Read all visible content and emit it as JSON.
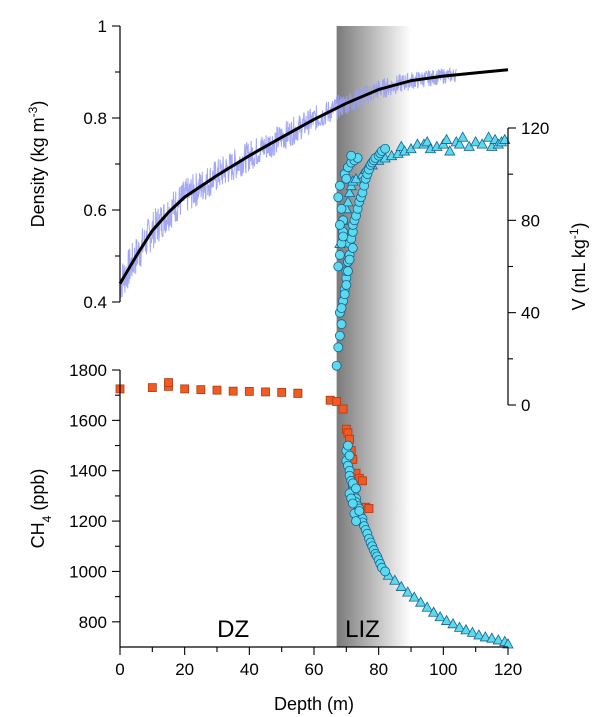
{
  "chart_data": {
    "type": "scatter",
    "x_axis": {
      "label": "Depth (m)",
      "range": [
        0,
        120
      ],
      "ticks": [
        0,
        20,
        40,
        60,
        80,
        100,
        120
      ]
    },
    "density_axis": {
      "label": "Density (kg m-3)",
      "label_main": "Density (kg m",
      "label_sup": "-3",
      "label_end": ")",
      "range": [
        0.4,
        1.0
      ],
      "ticks": [
        0.4,
        0.6,
        0.8,
        1.0
      ],
      "tick_labels": [
        "0.4",
        "0.6",
        "0.8",
        "1"
      ]
    },
    "v_axis": {
      "label": "V (mL kg-1)",
      "label_main": "V (mL kg",
      "label_sup": "-1",
      "label_end": ")",
      "range": [
        0,
        120
      ],
      "ticks": [
        0,
        40,
        80,
        120
      ]
    },
    "ch4_axis": {
      "label": "CH4 (ppb)",
      "label_main": "CH",
      "label_sub": "4",
      "label_end": " (ppb)",
      "range": [
        700,
        1800
      ],
      "ticks": [
        800,
        1000,
        1200,
        1400,
        1600,
        1800
      ]
    },
    "zones": [
      {
        "label": "DZ",
        "label_x": 35
      },
      {
        "label": "LIZ",
        "label_x": 75,
        "shade_from": 67,
        "shade_to": 90
      }
    ],
    "density_fit": {
      "x": [
        0,
        5,
        10,
        15,
        20,
        30,
        40,
        50,
        60,
        70,
        80,
        90,
        100,
        110,
        120
      ],
      "y": [
        0.44,
        0.5,
        0.555,
        0.595,
        0.628,
        0.675,
        0.718,
        0.758,
        0.797,
        0.832,
        0.862,
        0.881,
        0.891,
        0.898,
        0.905
      ]
    },
    "density_raw": {
      "x_range": [
        0,
        104
      ],
      "note_color": "#9a9ff2"
    },
    "ch4_firn": {
      "x": [
        0,
        10,
        15,
        15,
        20,
        25,
        30,
        35,
        40,
        45,
        50,
        55,
        55,
        65,
        67,
        69,
        70,
        70.5,
        71,
        71.5,
        72,
        73,
        74,
        75,
        76,
        77
      ],
      "y": [
        1725,
        1730,
        1735,
        1750,
        1725,
        1722,
        1720,
        1716,
        1715,
        1713,
        1711,
        1708,
        1707,
        1680,
        1675,
        1645,
        1565,
        1550,
        1525,
        1480,
        1445,
        1390,
        1370,
        1360,
        1255,
        1250
      ]
    },
    "v_circles": {
      "x": [
        67,
        67.5,
        68,
        68.5,
        68,
        69,
        69.5,
        70,
        70,
        70.5,
        71,
        71,
        71.5,
        72,
        72,
        72.5,
        73,
        73.5,
        74,
        74.5,
        75,
        75.5,
        76,
        76.5,
        77,
        77.5,
        78,
        78.5,
        79,
        80,
        80.5,
        81,
        82,
        67.5,
        68,
        68.5,
        69,
        69,
        68.5,
        67.5,
        68,
        69.5,
        70.5,
        71.5,
        72.5,
        73.5,
        68.5,
        69.5,
        70,
        70.5,
        71,
        72,
        69,
        68,
        70,
        71.5
      ],
      "y": [
        17,
        25,
        30,
        35,
        40,
        45,
        50,
        55,
        58,
        62,
        65,
        70,
        72,
        75,
        78,
        80,
        82,
        85,
        88,
        90,
        92,
        95,
        98,
        100,
        102,
        104,
        105,
        106,
        107,
        108,
        109,
        110,
        111,
        60,
        65,
        70,
        75,
        80,
        85,
        90,
        95,
        100,
        103,
        105,
        106,
        107,
        42,
        48,
        52,
        58,
        63,
        68,
        73,
        78,
        98,
        108
      ]
    },
    "v_triangles": {
      "x": [
        68,
        69,
        70,
        70.5,
        71,
        71.5,
        72,
        73,
        75,
        76,
        78,
        80,
        82,
        84,
        86,
        87,
        88,
        90,
        92,
        94,
        95,
        96,
        98,
        100,
        101,
        102,
        104,
        105,
        106,
        108,
        110,
        112,
        114,
        115,
        116,
        117,
        118,
        119
      ],
      "y": [
        70,
        80,
        85,
        88,
        92,
        95,
        97,
        98,
        100,
        102,
        104,
        106,
        107,
        108,
        109,
        112,
        110,
        111,
        113,
        113,
        114,
        111,
        112,
        113,
        115,
        110,
        114,
        113,
        116,
        112,
        114,
        113,
        116,
        112,
        115,
        113,
        114,
        115
      ]
    },
    "ch4_circles": {
      "x": [
        70,
        70,
        70.5,
        71,
        71,
        71.5,
        72,
        72,
        72.5,
        73,
        73,
        73.5,
        74,
        74,
        74.5,
        75,
        75,
        75.5,
        76,
        76.5,
        77,
        77.5,
        78,
        78.5,
        79,
        79.5,
        80,
        80.5,
        81,
        82,
        71,
        71.5,
        72,
        72.5,
        73,
        70.5,
        71,
        72,
        73,
        74
      ],
      "y": [
        1480,
        1440,
        1420,
        1400,
        1380,
        1360,
        1340,
        1320,
        1300,
        1290,
        1275,
        1260,
        1250,
        1235,
        1220,
        1210,
        1195,
        1180,
        1165,
        1150,
        1130,
        1115,
        1100,
        1085,
        1070,
        1060,
        1045,
        1030,
        1015,
        1000,
        1310,
        1290,
        1270,
        1230,
        1200,
        1500,
        1460,
        1350,
        1330,
        1240
      ]
    },
    "ch4_triangles": {
      "x": [
        83,
        85,
        87,
        89,
        91,
        93,
        95,
        97,
        99,
        101,
        103,
        105,
        107,
        109,
        111,
        113,
        115,
        117,
        119,
        120
      ],
      "y": [
        985,
        965,
        940,
        918,
        898,
        878,
        858,
        838,
        820,
        805,
        792,
        778,
        768,
        758,
        748,
        740,
        735,
        728,
        722,
        712
      ]
    },
    "colors": {
      "density_raw": "#9a9ff2",
      "density_fit": "#000000",
      "ch4_firn": "#f15a24",
      "ch4_firn_edge": "#b03a10",
      "v_marker": "#5bd9ee",
      "v_marker_edge": "#1a5f8c",
      "shade_dark": "#7a7a7a",
      "shade_light": "#ffffff"
    }
  }
}
